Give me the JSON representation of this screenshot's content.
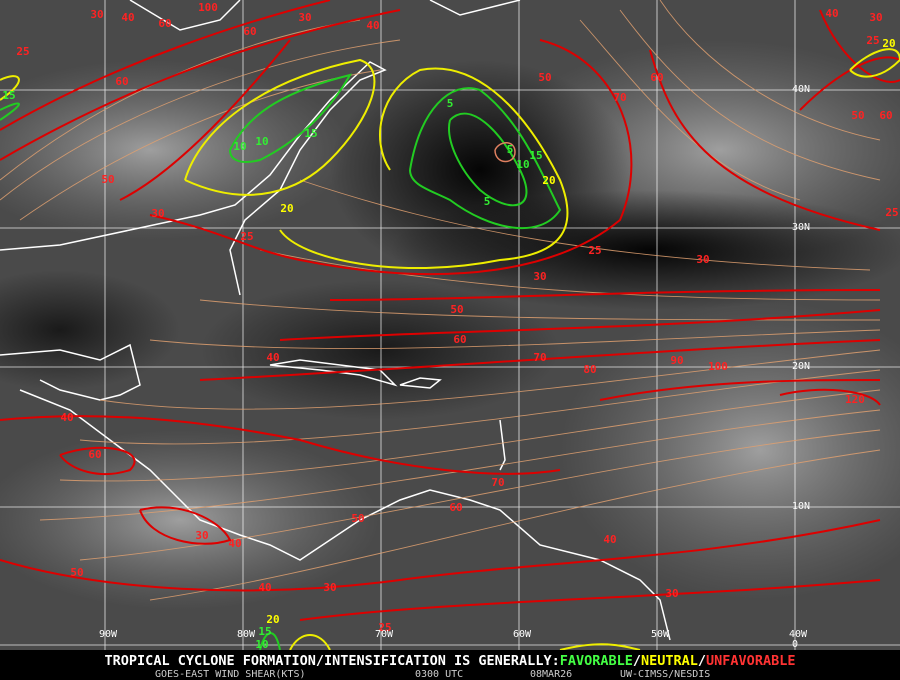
{
  "map": {
    "latitude_labels": [
      "40N",
      "30N",
      "20N",
      "10N",
      "0"
    ],
    "longitude_labels": [
      "90W",
      "80W",
      "70W",
      "60W",
      "50W",
      "40W"
    ],
    "contour_labels": {
      "unfavorable": [
        30,
        40,
        60,
        100,
        60,
        30,
        40,
        25,
        60,
        50,
        30,
        25,
        50,
        60,
        70,
        40,
        30,
        50,
        60,
        25,
        25,
        30,
        30,
        50,
        60,
        70,
        80,
        90,
        100,
        120,
        40,
        40,
        60,
        70,
        60,
        50,
        30,
        40,
        40,
        50,
        30,
        40,
        30,
        25,
        25
      ],
      "neutral": [
        20,
        20,
        20,
        20
      ],
      "favorable": [
        15,
        10,
        10,
        15,
        5,
        5,
        5,
        10,
        15,
        15,
        10
      ]
    },
    "banner": {
      "prefix": "TROPICAL CYCLONE FORMATION/INTENSIFICATION IS GENERALLY:",
      "favorable": "FAVORABLE",
      "separator": "/",
      "neutral": "NEUTRAL",
      "unfavorable": "UNFAVORABLE"
    },
    "footer": {
      "product": "GOES-EAST WIND SHEAR(KTS)",
      "time": "0300 UTC",
      "date": "08MAR26",
      "source": "UW-CIMSS/NESDIS"
    }
  }
}
